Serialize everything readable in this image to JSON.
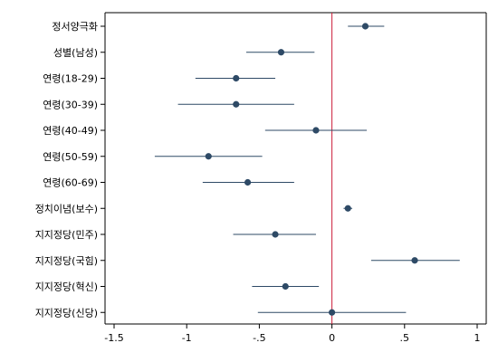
{
  "chart_data": {
    "type": "scatter",
    "subtype": "coefficient-plot",
    "title": "",
    "xlabel": "",
    "ylabel": "",
    "xlim": [
      -1.5,
      1
    ],
    "xticks": [
      -1.5,
      -1,
      -0.5,
      0,
      0.5,
      1
    ],
    "xtick_labels": [
      "-1.5",
      "-1",
      "-.5",
      "0",
      ".5",
      "1"
    ],
    "reference_line_x": 0,
    "grid": false,
    "legend": "none",
    "colors": {
      "marker": "#2e4a66",
      "ci": "#2e4a66",
      "reference": "#cc1f3a",
      "axis": "#000000"
    },
    "points": [
      {
        "label": "정서양극화",
        "estimate": 0.23,
        "ci_low": 0.11,
        "ci_high": 0.36
      },
      {
        "label": "성별(남성)",
        "estimate": -0.35,
        "ci_low": -0.59,
        "ci_high": -0.12
      },
      {
        "label": "연령(18-29)",
        "estimate": -0.66,
        "ci_low": -0.94,
        "ci_high": -0.39
      },
      {
        "label": "연령(30-39)",
        "estimate": -0.66,
        "ci_low": -1.06,
        "ci_high": -0.26
      },
      {
        "label": "연령(40-49)",
        "estimate": -0.11,
        "ci_low": -0.46,
        "ci_high": 0.24
      },
      {
        "label": "연령(50-59)",
        "estimate": -0.85,
        "ci_low": -1.22,
        "ci_high": -0.48
      },
      {
        "label": "연령(60-69)",
        "estimate": -0.58,
        "ci_low": -0.89,
        "ci_high": -0.26
      },
      {
        "label": "정치이념(보수)",
        "estimate": 0.11,
        "ci_low": 0.08,
        "ci_high": 0.14
      },
      {
        "label": "지지정당(민주)",
        "estimate": -0.39,
        "ci_low": -0.68,
        "ci_high": -0.11
      },
      {
        "label": "지지정당(국힘)",
        "estimate": 0.57,
        "ci_low": 0.27,
        "ci_high": 0.88
      },
      {
        "label": "지지정당(혁신)",
        "estimate": -0.32,
        "ci_low": -0.55,
        "ci_high": -0.09
      },
      {
        "label": "지지정당(신당)",
        "estimate": 0.0,
        "ci_low": -0.51,
        "ci_high": 0.51
      }
    ]
  }
}
